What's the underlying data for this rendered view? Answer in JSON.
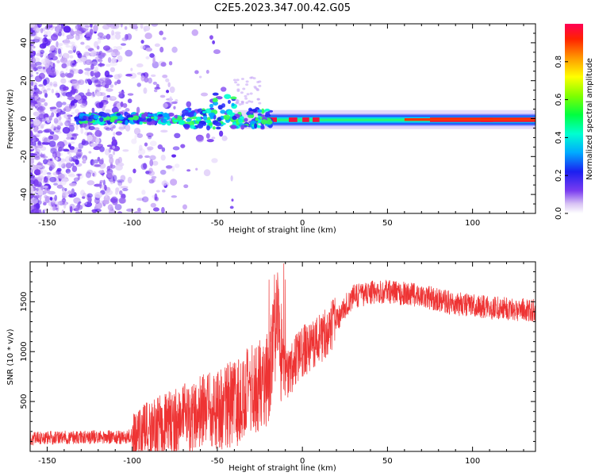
{
  "title": "C2E5.2023.347.00.42.G05",
  "chart_data": [
    {
      "type": "heatmap",
      "title": "C2E5.2023.347.00.42.G05",
      "xlabel": "Height of straight line (km)",
      "ylabel": "Frequency (Hz)",
      "xlim": [
        -160,
        137
      ],
      "ylim": [
        -50,
        50
      ],
      "xticks": [
        -150,
        -100,
        -50,
        0,
        50,
        100
      ],
      "yticks": [
        -40,
        -20,
        0,
        20,
        40
      ],
      "colorbar": {
        "label": "Normalized spectral amplitude",
        "range": [
          0,
          1
        ],
        "ticks": [
          "0.0",
          "0.2",
          "0.4",
          "0.6",
          "0.8"
        ],
        "colormap": "rainbow (white/purple low → red high)"
      },
      "description_points": {
        "noise_region_x": [
          -160,
          -80
        ],
        "ridge_center_y": 0,
        "ridge_start_x": -133,
        "ridge_end_x": 137
      }
    },
    {
      "type": "line",
      "xlabel": "Height of straight line (km)",
      "ylabel": "SNR (10 * v/v)",
      "xlim": [
        -160,
        137
      ],
      "ylim": [
        0,
        1900
      ],
      "xticks": [
        -150,
        -100,
        -50,
        0,
        50,
        100
      ],
      "yticks": [
        500,
        1000,
        1500
      ],
      "color": "#ee3333",
      "series": [
        {
          "x": [
            -160,
            -140,
            -120,
            -105,
            -100,
            -90,
            -80,
            -70,
            -60,
            -50,
            -40,
            -30,
            -20,
            -15,
            -12,
            -10,
            -5,
            0,
            10,
            20,
            25,
            30,
            40,
            50,
            60,
            70,
            80,
            90,
            100,
            110,
            120,
            130,
            137
          ],
          "values": [
            130,
            140,
            145,
            140,
            160,
            220,
            280,
            330,
            380,
            420,
            480,
            600,
            750,
            1300,
            950,
            750,
            880,
            1000,
            1120,
            1300,
            1450,
            1550,
            1590,
            1600,
            1580,
            1560,
            1520,
            1480,
            1460,
            1440,
            1430,
            1420,
            1410
          ]
        }
      ]
    }
  ]
}
